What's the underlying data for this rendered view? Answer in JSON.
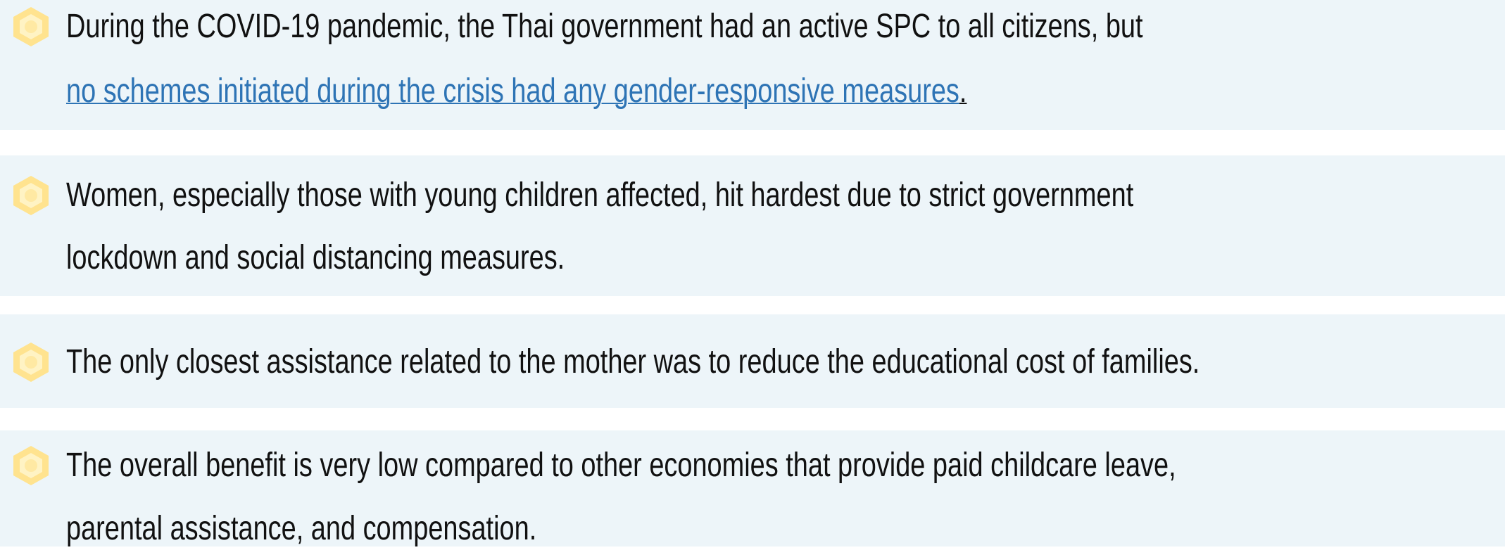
{
  "items": [
    {
      "lines": [
        "During the COVID-19 pandemic, the Thai government had an active SPC to all citizens, but"
      ],
      "link": "no schemes initiated during the crisis had any gender-responsive measures",
      "link_end": "."
    },
    {
      "lines": [
        "Women, especially those with young children affected, hit hardest due to strict government",
        "lockdown and social distancing measures."
      ]
    },
    {
      "lines": [
        "The only closest assistance related to the mother was to reduce the educational cost of families."
      ]
    },
    {
      "lines": [
        "The overall benefit is very low compared to other economies that provide paid childcare leave,",
        "parental assistance, and compensation."
      ]
    }
  ]
}
